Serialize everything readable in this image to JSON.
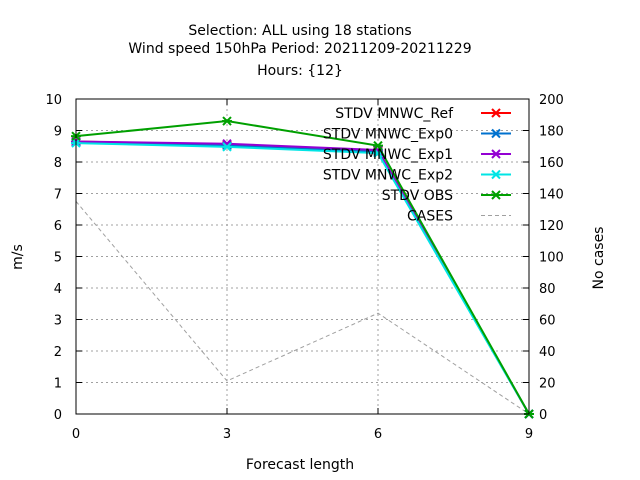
{
  "chart_data": {
    "type": "line",
    "title_lines": [
      "Selection: ALL using     18 stations",
      "Wind speed 150hPa   Period: 20211209-20211229",
      "Hours: {12}"
    ],
    "xlabel": "Forecast length",
    "ylabel": "m/s",
    "y2label": "No cases",
    "x": [
      0,
      3,
      6,
      9
    ],
    "xlim": [
      0,
      9
    ],
    "ylim": [
      0,
      10
    ],
    "y2lim": [
      0,
      200
    ],
    "x_ticks": [
      "0",
      "3",
      "6",
      "9"
    ],
    "y_ticks": [
      "0",
      "1",
      "2",
      "3",
      "4",
      "5",
      "6",
      "7",
      "8",
      "9",
      "10"
    ],
    "y2_ticks": [
      "0",
      "20",
      "40",
      "60",
      "80",
      "100",
      "120",
      "140",
      "160",
      "180",
      "200"
    ],
    "grid": true,
    "legend_position": "top-right",
    "series": [
      {
        "name": "STDV MNWC_Ref",
        "color": "#ff0000",
        "axis": "y",
        "style": "solid",
        "values": [
          8.65,
          8.55,
          8.35,
          0
        ]
      },
      {
        "name": "STDV MNWC_Exp0",
        "color": "#0072cf",
        "axis": "y",
        "style": "solid",
        "values": [
          8.62,
          8.52,
          8.32,
          0
        ]
      },
      {
        "name": "STDV MNWC_Exp1",
        "color": "#9400d3",
        "axis": "y",
        "style": "solid",
        "values": [
          8.65,
          8.58,
          8.38,
          0
        ]
      },
      {
        "name": "STDV MNWC_Exp2",
        "color": "#00e5e5",
        "axis": "y",
        "style": "solid",
        "values": [
          8.6,
          8.48,
          8.28,
          0
        ]
      },
      {
        "name": "STDV OBS",
        "color": "#00a000",
        "axis": "y",
        "style": "solid",
        "values": [
          8.82,
          9.3,
          8.52,
          0
        ]
      },
      {
        "name": "CASES",
        "color": "#a0a0a0",
        "axis": "y2",
        "style": "dashed",
        "values": [
          135,
          21,
          64,
          0
        ]
      }
    ]
  }
}
